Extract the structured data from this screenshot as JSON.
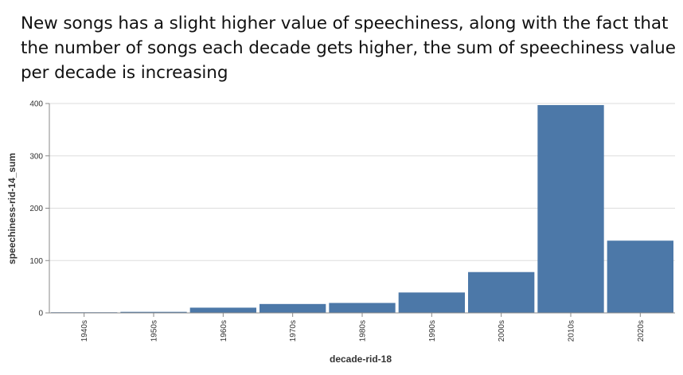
{
  "caption": "New songs has a slight higher value of speechiness, along with the fact that the number of songs each decade gets higher, the sum of speechiness value per decade is increasing",
  "chart_data": {
    "type": "bar",
    "categories": [
      "1940s",
      "1950s",
      "1960s",
      "1970s",
      "1980s",
      "1990s",
      "2000s",
      "2010s",
      "2020s"
    ],
    "values": [
      0.5,
      2,
      10,
      17,
      19,
      39,
      78,
      397,
      138
    ],
    "xlabel": "decade-rid-18",
    "ylabel": "speechiness-rid-14_sum",
    "ylim": [
      0,
      400
    ],
    "yticks": [
      0,
      100,
      200,
      300,
      400
    ],
    "bar_color": "#4c78a8",
    "grid": true,
    "grid_color": "#dddddd",
    "axis_color": "#888888"
  }
}
